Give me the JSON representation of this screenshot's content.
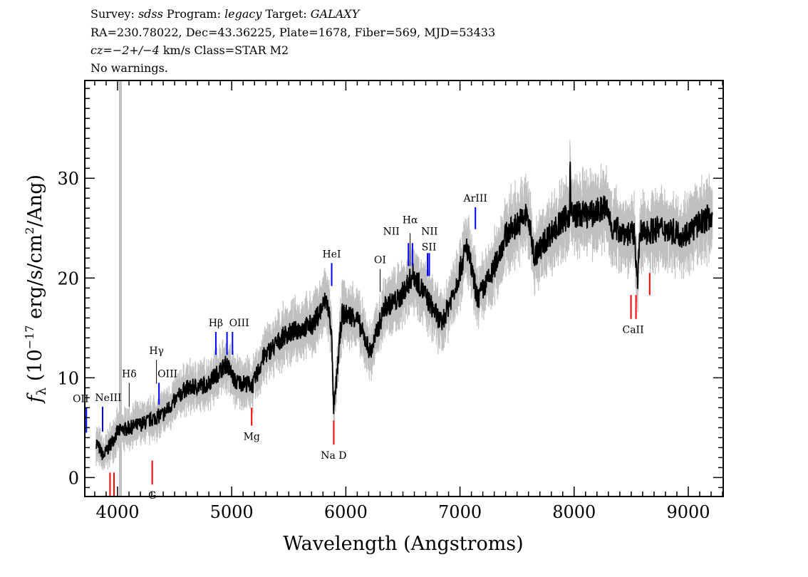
{
  "header": {
    "line1_survey_label": "Survey:",
    "survey": "sdss",
    "program_label": "Program:",
    "program": "legacy",
    "target_label": "Target:",
    "target": "GALAXY",
    "line2": "RA=230.78022, Dec=43.36225, Plate=1678, Fiber=569, MJD=53433",
    "cz_label": "cz",
    "cz_value": "=−2+/−4",
    "cz_units": " km/s Class=STAR M2",
    "line4": "No warnings."
  },
  "chart_data": {
    "type": "line",
    "xlabel": "Wavelength (Angstroms)",
    "ylabel": "fλ (10⁻¹⁷ erg/s/cm²/Ang)",
    "ylabel_parts": {
      "f": "f",
      "sub": "λ",
      "a": " (10",
      "exp1": "−17",
      "b": " erg/s/cm",
      "exp2": "2",
      "c": "/Ang)"
    },
    "xlim": [
      3713,
      9306
    ],
    "ylim": [
      -1.9,
      39.8
    ],
    "xticks": [
      4000,
      5000,
      6000,
      7000,
      8000,
      9000
    ],
    "yticks": [
      0,
      10,
      20,
      30
    ],
    "grid": false,
    "colors": {
      "spectrum": "#000000",
      "error": "#c0c0c0",
      "emission": "#0000ff",
      "absorption": "#ff0000",
      "balmer": "#000000"
    },
    "spectrum_anchor_points": [
      [
        3813,
        3.6
      ],
      [
        3875,
        2.1
      ],
      [
        4000,
        4.6
      ],
      [
        4218,
        5.4
      ],
      [
        4406,
        6.4
      ],
      [
        4593,
        8.9
      ],
      [
        4780,
        9.3
      ],
      [
        4955,
        11.4
      ],
      [
        5030,
        9.6
      ],
      [
        5186,
        9.3
      ],
      [
        5280,
        12.1
      ],
      [
        5467,
        14.3
      ],
      [
        5717,
        15.4
      ],
      [
        5830,
        17.9
      ],
      [
        5873,
        15.0
      ],
      [
        5894,
        6.4
      ],
      [
        5966,
        16.4
      ],
      [
        6091,
        16.1
      ],
      [
        6216,
        12.5
      ],
      [
        6341,
        17.1
      ],
      [
        6466,
        17.9
      ],
      [
        6591,
        20.4
      ],
      [
        6715,
        17.9
      ],
      [
        6840,
        15.4
      ],
      [
        6965,
        19.3
      ],
      [
        7059,
        23.2
      ],
      [
        7153,
        17.9
      ],
      [
        7278,
        20.4
      ],
      [
        7402,
        24.3
      ],
      [
        7590,
        26.4
      ],
      [
        7652,
        22.1
      ],
      [
        7777,
        24.3
      ],
      [
        7960,
        26.4
      ],
      [
        7964,
        33.0
      ],
      [
        7970,
        26.4
      ],
      [
        8151,
        26.4
      ],
      [
        8276,
        27.1
      ],
      [
        8338,
        25.0
      ],
      [
        8525,
        24.3
      ],
      [
        8556,
        20.0
      ],
      [
        8580,
        24.5
      ],
      [
        8775,
        25.0
      ],
      [
        8962,
        24.3
      ],
      [
        9212,
        26.4
      ]
    ],
    "masked_wavelength": 4025,
    "lines": [
      {
        "label": "OII",
        "wavelength": 3727,
        "kind": "emission"
      },
      {
        "label": "NeIII",
        "wavelength": 3869,
        "kind": "emission"
      },
      {
        "label": "Hδ",
        "wavelength": 4102,
        "kind": "balmer"
      },
      {
        "label": "Hγ",
        "wavelength": 4341,
        "kind": "balmer"
      },
      {
        "label": "OIII",
        "wavelength": 4363,
        "kind": "emission"
      },
      {
        "label": "Hβ",
        "wavelength": 4861,
        "kind": "emission"
      },
      {
        "label": "OIII",
        "wavelength": 4959,
        "kind": "emission"
      },
      {
        "label": "",
        "wavelength": 5007,
        "kind": "emission"
      },
      {
        "label": "HeI",
        "wavelength": 5876,
        "kind": "emission"
      },
      {
        "label": "OI",
        "wavelength": 6300,
        "kind": "balmer"
      },
      {
        "label": "NII",
        "wavelength": 6548,
        "kind": "emission"
      },
      {
        "label": "Hα",
        "wavelength": 6563,
        "kind": "balmer"
      },
      {
        "label": "NII",
        "wavelength": 6583,
        "kind": "emission"
      },
      {
        "label": "SII",
        "wavelength": 6716,
        "kind": "emission"
      },
      {
        "label": "",
        "wavelength": 6731,
        "kind": "emission"
      },
      {
        "label": "ArIII",
        "wavelength": 7135,
        "kind": "emission"
      },
      {
        "label": "",
        "wavelength": 3934,
        "kind": "absorption"
      },
      {
        "label": "",
        "wavelength": 3969,
        "kind": "absorption"
      },
      {
        "label": "G",
        "wavelength": 4304,
        "kind": "absorption"
      },
      {
        "label": "Mg",
        "wavelength": 5175,
        "kind": "absorption"
      },
      {
        "label": "Na D",
        "wavelength": 5894,
        "kind": "absorption"
      },
      {
        "label": "CaII",
        "wavelength": 8498,
        "kind": "absorption"
      },
      {
        "label": "",
        "wavelength": 8542,
        "kind": "absorption"
      },
      {
        "label": "",
        "wavelength": 8662,
        "kind": "absorption"
      }
    ]
  }
}
